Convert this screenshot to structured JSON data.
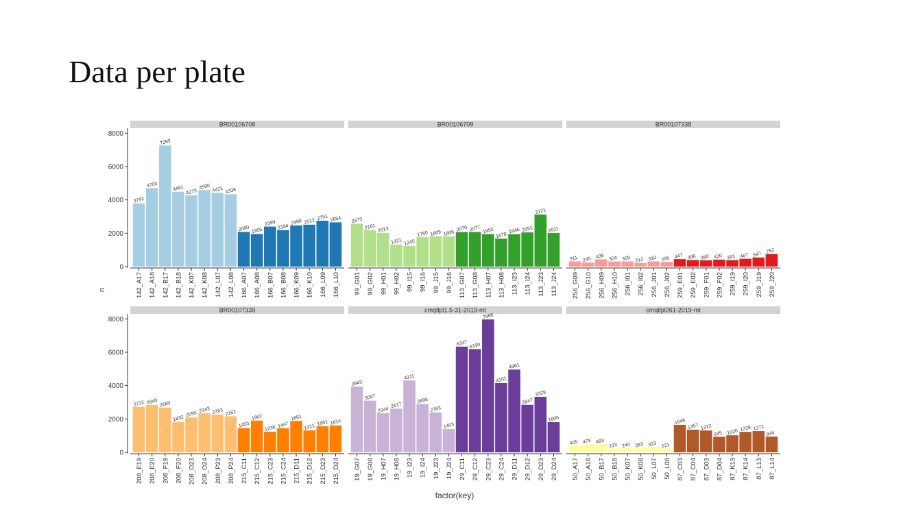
{
  "slide": {
    "title": "Data per plate"
  },
  "chart_data": {
    "type": "bar",
    "xlabel": "factor(key)",
    "ylabel": "n",
    "ylim": [
      0,
      8300
    ],
    "yticks": [
      0,
      2000,
      4000,
      6000,
      8000
    ],
    "grid": false,
    "legend": "none",
    "panels": [
      {
        "label": "BR00106708",
        "series": [
          {
            "color": "#a6cee3",
            "categories": [
              "142_A17",
              "142_A18",
              "142_B17",
              "142_B18",
              "142_K07",
              "142_K08",
              "142_L07",
              "142_L08"
            ],
            "values": [
              3792,
              4703,
              7259,
              4491,
              4273,
              4590,
              4421,
              4338
            ]
          },
          {
            "color": "#1f78b4",
            "categories": [
              "166_A07",
              "166_A08",
              "166_B07",
              "166_B08",
              "166_K09",
              "166_K10",
              "166_L09",
              "166_L10"
            ],
            "values": [
              2080,
              1955,
              2399,
              2184,
              2468,
              2512,
              2751,
              2654
            ]
          }
        ]
      },
      {
        "label": "BR00106709",
        "series": [
          {
            "color": "#b2df8a",
            "categories": [
              "99_G01",
              "99_G02",
              "99_H01",
              "99_H02",
              "99_I15",
              "99_I16",
              "99_J15",
              "99_J16"
            ],
            "values": [
              2573,
              2181,
              2013,
              1321,
              1245,
              1760,
              1809,
              1806
            ]
          },
          {
            "color": "#33a02c",
            "categories": [
              "113_G07",
              "113_G08",
              "113_H07",
              "113_H08",
              "113_I23",
              "113_I24",
              "113_J23",
              "113_J24"
            ],
            "values": [
              2070,
              2077,
              1953,
              1678,
              1946,
              2051,
              3121,
              2011
            ]
          }
        ]
      },
      {
        "label": "BR00107338",
        "series": [
          {
            "color": "#fb9a99",
            "categories": [
              "256_G09",
              "256_G10",
              "256_H09",
              "256_H10",
              "256_I01",
              "256_I02",
              "256_J01",
              "256_J02"
            ],
            "values": [
              311,
              245,
              436,
              304,
              309,
              212,
              310,
              285
            ]
          },
          {
            "color": "#e31a1c",
            "categories": [
              "259_E01",
              "259_E02",
              "259_F01",
              "259_F02",
              "259_I19",
              "259_I20",
              "259_J19",
              "259_J20"
            ],
            "values": [
              447,
              396,
              380,
              420,
              391,
              467,
              547,
              752
            ]
          }
        ]
      },
      {
        "label": "BR00107339",
        "series": [
          {
            "color": "#fdbf6f",
            "categories": [
              "208_E19",
              "208_E20",
              "208_F19",
              "208_F20",
              "208_O23",
              "208_O24",
              "208_P23",
              "208_P24"
            ],
            "values": [
              2722,
              2840,
              2680,
              1832,
              2095,
              2343,
              2263,
              2162
            ]
          },
          {
            "color": "#ff7f00",
            "categories": [
              "215_C11",
              "215_C12",
              "215_C23",
              "215_C24",
              "215_D11",
              "215_D12",
              "215_D23",
              "215_D24"
            ],
            "values": [
              1453,
              1902,
              1238,
              1447,
              1881,
              1321,
              1561,
              1614
            ]
          }
        ]
      },
      {
        "label": "cmqtlpl1.5-31-2019-mt",
        "series": [
          {
            "color": "#cab2d6",
            "categories": [
              "19_G07",
              "19_G08",
              "19_H07",
              "19_H08",
              "19_I23",
              "19_I24",
              "19_J23",
              "19_J24"
            ],
            "values": [
              3943,
              3097,
              2344,
              2617,
              4311,
              2895,
              2393,
              1403
            ]
          },
          {
            "color": "#6a3d9a",
            "categories": [
              "29_C11",
              "29_C12",
              "29_C23",
              "29_C24",
              "29_D11",
              "29_D12",
              "29_D23",
              "29_D24"
            ],
            "values": [
              6337,
              6190,
              7966,
              4152,
              4961,
              2847,
              3329,
              1806
            ]
          }
        ]
      },
      {
        "label": "cmqtlpl261-2019-mt",
        "series": [
          {
            "color": "#ffff99",
            "categories": [
              "50_A17",
              "50_A18",
              "50_B17",
              "50_B18",
              "50_K07",
              "50_K08",
              "50_L07",
              "50_L08"
            ],
            "values": [
              405,
              479,
              483,
              223,
              240,
              263,
              323,
              221
            ]
          },
          {
            "color": "#b15928",
            "categories": [
              "87_C03",
              "87_C04",
              "87_D03",
              "87_D04",
              "87_K13",
              "87_K14",
              "87_L13",
              "87_L14"
            ],
            "values": [
              1646,
              1357,
              1312,
              935,
              1020,
              1228,
              1271,
              944
            ]
          }
        ]
      }
    ]
  }
}
